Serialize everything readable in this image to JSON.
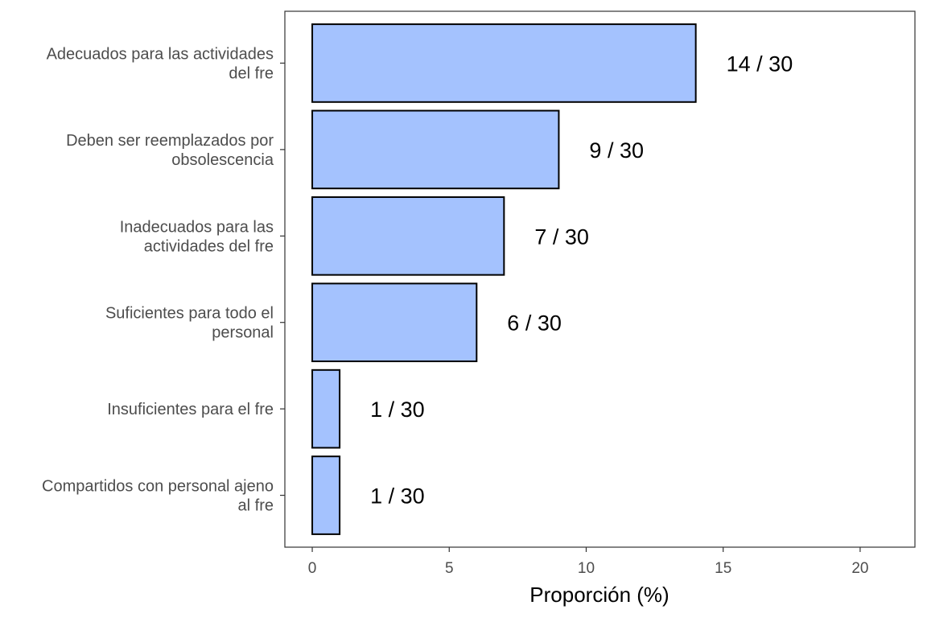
{
  "chart_data": {
    "type": "bar",
    "orientation": "horizontal",
    "categories": [
      [
        "Adecuados para las actividades",
        "del fre"
      ],
      [
        "Deben ser reemplazados por",
        "obsolescencia"
      ],
      [
        "Inadecuados para las",
        "actividades del fre"
      ],
      [
        "Suficientes para todo el",
        "personal"
      ],
      [
        "Insuficientes para el fre"
      ],
      [
        "Compartidos con personal ajeno",
        "al fre"
      ]
    ],
    "values": [
      14,
      9,
      7,
      6,
      1,
      1
    ],
    "data_labels": [
      "14 / 30",
      "9 / 30",
      "7 / 30",
      "6 / 30",
      "1 / 30",
      "1 / 30"
    ],
    "xlabel": "Proporción (%)",
    "ylabel": "",
    "title": "",
    "xlim": [
      -1,
      22
    ],
    "xticks": [
      0,
      5,
      10,
      15,
      20
    ],
    "xtick_labels": [
      "0",
      "5",
      "10",
      "15",
      "20"
    ],
    "bar_color": "#a4c2fe",
    "bar_edge_color": "#000000",
    "grid": false,
    "legend": "none"
  }
}
